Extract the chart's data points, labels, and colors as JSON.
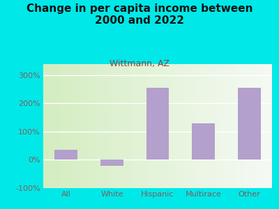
{
  "title": "Change in per capita income between\n2000 and 2022",
  "subtitle": "Wittmann, AZ",
  "categories": [
    "All",
    "White",
    "Hispanic",
    "Multirace",
    "Other"
  ],
  "values": [
    35,
    -20,
    255,
    130,
    255
  ],
  "bar_color": "#b3a0cc",
  "background_outer": "#00e8e8",
  "title_color": "#111111",
  "subtitle_color": "#8b4040",
  "tick_label_color": "#7a6060",
  "ylim": [
    -100,
    340
  ],
  "yticks": [
    -100,
    0,
    100,
    200,
    300
  ],
  "ytick_labels": [
    "-100%",
    "0%",
    "100%",
    "200%",
    "300%"
  ],
  "title_fontsize": 11,
  "subtitle_fontsize": 9,
  "tick_fontsize": 8
}
